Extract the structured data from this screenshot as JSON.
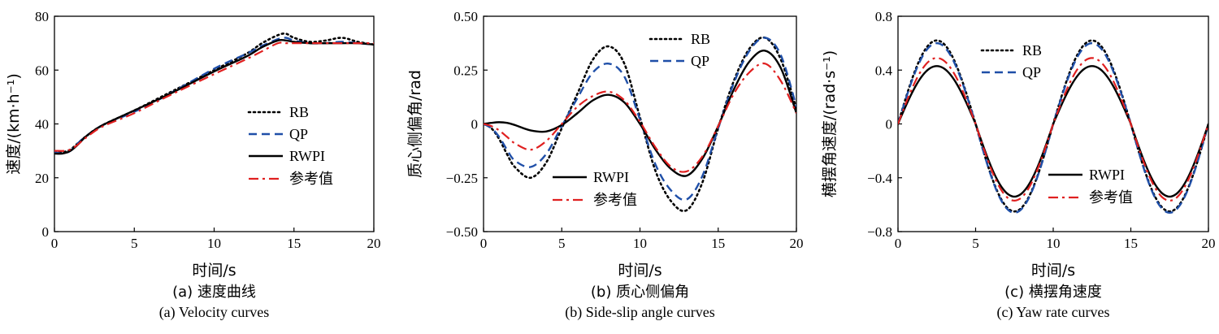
{
  "chart_data": [
    {
      "type": "line",
      "caption_cn": "(a) 速度曲线",
      "caption_en": "(a) Velocity curves",
      "xlabel": "时间/s",
      "ylabel": "速度/(km·h⁻¹)",
      "xlim": [
        0,
        20
      ],
      "ylim": [
        0,
        80
      ],
      "xticks": [
        "0",
        "5",
        "10",
        "15",
        "20"
      ],
      "yticks": [
        "0",
        "20",
        "40",
        "60",
        "80"
      ],
      "legend_position": "center-right",
      "series": [
        {
          "name": "RB",
          "color": "#000000",
          "style": "dotted",
          "x": [
            0,
            0.5,
            1,
            1.5,
            2,
            3,
            5,
            7,
            10,
            12,
            13,
            14,
            14.5,
            15,
            16,
            17,
            18,
            19,
            20
          ],
          "y": [
            30,
            29.5,
            30.5,
            33,
            35.5,
            39.5,
            45,
            51,
            60,
            66,
            70,
            73,
            73.5,
            72,
            70.5,
            71,
            72,
            70.5,
            69.5
          ]
        },
        {
          "name": "QP",
          "color": "#1f4fa8",
          "style": "dashed",
          "x": [
            0,
            0.5,
            1,
            1.5,
            2,
            3,
            5,
            7,
            10,
            12,
            13,
            14,
            14.5,
            15,
            16,
            17,
            18,
            19,
            20
          ],
          "y": [
            29.5,
            29,
            30,
            33,
            35.5,
            39.5,
            44.5,
            50.5,
            60.5,
            66,
            69,
            71.5,
            72,
            71,
            70,
            70,
            70.5,
            70,
            69.5
          ]
        },
        {
          "name": "RWPI",
          "color": "#000000",
          "style": "solid",
          "x": [
            0,
            0.5,
            1,
            1.5,
            2,
            3,
            5,
            7,
            10,
            12,
            13,
            14,
            14.5,
            15,
            16,
            17,
            18,
            19,
            20
          ],
          "y": [
            29,
            29,
            30,
            32.5,
            35.5,
            39.5,
            45,
            50.5,
            59.5,
            65,
            68.5,
            71,
            71,
            70.5,
            70,
            70,
            70,
            70,
            69.5
          ]
        },
        {
          "name": "参考值",
          "color": "#e02020",
          "style": "dashdot",
          "x": [
            0,
            1,
            2,
            3,
            5,
            7,
            10,
            12,
            13,
            14,
            14.5,
            15,
            16,
            17,
            18,
            19,
            20
          ],
          "y": [
            30,
            30.5,
            35,
            39,
            44,
            50,
            58.5,
            64,
            67,
            70,
            70,
            70,
            70,
            70,
            70,
            70,
            70
          ]
        }
      ]
    },
    {
      "type": "line",
      "caption_cn": "(b) 质心侧偏角",
      "caption_en": "(b) Side-slip angle curves",
      "xlabel": "时间/s",
      "ylabel": "质心侧偏角/rad",
      "xlim": [
        0,
        20
      ],
      "ylim": [
        -0.5,
        0.5
      ],
      "xticks": [
        "0",
        "5",
        "10",
        "15",
        "20"
      ],
      "yticks": [
        "−0.50",
        "−0.25",
        "0",
        "0.25",
        "0.50"
      ],
      "legend_position": "split",
      "series": [
        {
          "name": "RB",
          "color": "#000000",
          "style": "dotted",
          "x": [
            0,
            0.5,
            1,
            1.5,
            2,
            3,
            4,
            5,
            6,
            7,
            8,
            9,
            10,
            11,
            12,
            13,
            14,
            15,
            16,
            17,
            18,
            19,
            20
          ],
          "y": [
            0,
            -0.02,
            -0.07,
            -0.14,
            -0.2,
            -0.25,
            -0.18,
            -0.02,
            0.14,
            0.3,
            0.36,
            0.28,
            0.03,
            -0.22,
            -0.36,
            -0.4,
            -0.27,
            -0.02,
            0.2,
            0.35,
            0.4,
            0.3,
            0.07
          ]
        },
        {
          "name": "QP",
          "color": "#1f4fa8",
          "style": "dashed",
          "x": [
            0,
            0.5,
            1,
            1.5,
            2,
            3,
            4,
            5,
            6,
            7,
            8,
            9,
            10,
            11,
            12,
            13,
            14,
            15,
            16,
            17,
            18,
            19,
            20
          ],
          "y": [
            0,
            -0.02,
            -0.06,
            -0.12,
            -0.17,
            -0.2,
            -0.14,
            -0.01,
            0.12,
            0.24,
            0.28,
            0.22,
            0.02,
            -0.19,
            -0.31,
            -0.35,
            -0.24,
            -0.02,
            0.19,
            0.34,
            0.4,
            0.32,
            0.08
          ]
        },
        {
          "name": "RWPI",
          "color": "#000000",
          "style": "solid",
          "x": [
            0,
            0.5,
            1,
            1.5,
            2,
            3,
            4,
            5,
            6,
            7,
            8,
            9,
            10,
            11,
            12,
            13,
            14,
            15,
            16,
            17,
            18,
            19,
            20
          ],
          "y": [
            0,
            0.005,
            0.008,
            0.005,
            -0.005,
            -0.03,
            -0.035,
            -0.005,
            0.05,
            0.11,
            0.135,
            0.1,
            0.0,
            -0.12,
            -0.21,
            -0.24,
            -0.16,
            -0.01,
            0.16,
            0.29,
            0.34,
            0.26,
            0.05
          ]
        },
        {
          "name": "参考值",
          "color": "#e02020",
          "style": "dashdot",
          "x": [
            0,
            0.5,
            1,
            1.5,
            2,
            3,
            4,
            5,
            6,
            7,
            8,
            9,
            10,
            11,
            12,
            13,
            14,
            15,
            16,
            17,
            18,
            19,
            20
          ],
          "y": [
            0,
            -0.01,
            -0.03,
            -0.06,
            -0.09,
            -0.12,
            -0.08,
            0.0,
            0.08,
            0.13,
            0.15,
            0.11,
            0.01,
            -0.11,
            -0.2,
            -0.22,
            -0.15,
            -0.01,
            0.14,
            0.24,
            0.28,
            0.2,
            0.05
          ]
        }
      ]
    },
    {
      "type": "line",
      "caption_cn": "(c) 横摆角速度",
      "caption_en": "(c) Yaw rate curves",
      "xlabel": "时间/s",
      "ylabel": "横摆角速度/(rad·s⁻¹)",
      "xlim": [
        0,
        20
      ],
      "ylim": [
        -0.8,
        0.8
      ],
      "xticks": [
        "0",
        "5",
        "10",
        "15",
        "20"
      ],
      "yticks": [
        "−0.8",
        "−0.4",
        "0",
        "0.4",
        "0.8"
      ],
      "legend_position": "split",
      "series": [
        {
          "name": "RB",
          "color": "#000000",
          "style": "dotted",
          "amp_pos": 0.62,
          "amp_neg": -0.65
        },
        {
          "name": "QP",
          "color": "#1f4fa8",
          "style": "dashed",
          "amp_pos": 0.6,
          "amp_neg": -0.66
        },
        {
          "name": "RWPI",
          "color": "#000000",
          "style": "solid",
          "amp_pos": 0.43,
          "amp_neg": -0.54
        },
        {
          "name": "参考值",
          "color": "#e02020",
          "style": "dashdot",
          "amp_pos": 0.49,
          "amp_neg": -0.57
        }
      ]
    }
  ]
}
